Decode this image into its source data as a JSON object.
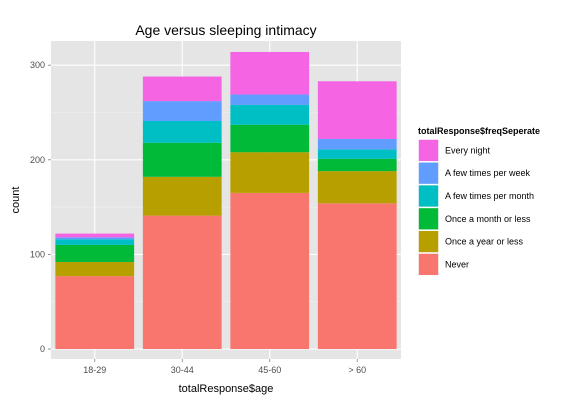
{
  "chart_data": {
    "type": "bar",
    "stacked": true,
    "title": "Age versus sleeping intimacy",
    "xlabel": "totalResponse$age",
    "ylabel": "count",
    "categories": [
      "18-29",
      "30-44",
      "45-60",
      "> 60"
    ],
    "ylim": [
      0,
      320
    ],
    "yticks": [
      0,
      100,
      200,
      300
    ],
    "grid": true,
    "legend": {
      "title": "totalResponse$freqSeperate",
      "position": "right"
    },
    "series": [
      {
        "name": "Never",
        "color": "#F8766D",
        "values": [
          77,
          141,
          165,
          154
        ]
      },
      {
        "name": "Once a year or less",
        "color": "#B79F00",
        "values": [
          15,
          41,
          43,
          34
        ]
      },
      {
        "name": "Once a month or less",
        "color": "#00BA38",
        "values": [
          18,
          36,
          29,
          13
        ]
      },
      {
        "name": "A few times per month",
        "color": "#00BFC4",
        "values": [
          6,
          23,
          21,
          10
        ]
      },
      {
        "name": "A few times per week",
        "color": "#619CFF",
        "values": [
          2,
          21,
          11,
          11
        ]
      },
      {
        "name": "Every night",
        "color": "#F564E3",
        "values": [
          4,
          26,
          45,
          61
        ]
      }
    ]
  }
}
